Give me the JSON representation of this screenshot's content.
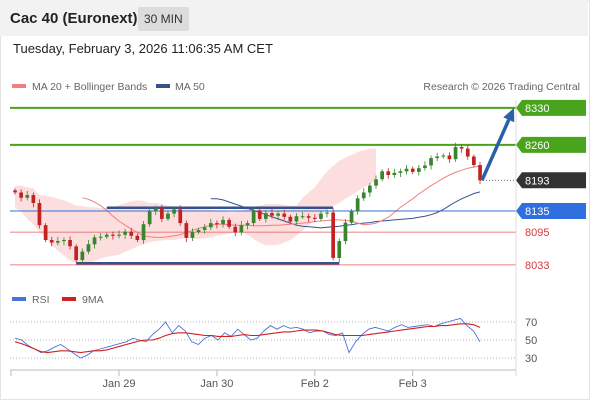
{
  "header": {
    "title": "Cac 40 (Euronext)",
    "timeframe": "30 MIN",
    "timestamp": "Tuesday, February 3, 2026 11:06:35 AM CET"
  },
  "legend": {
    "ma20_label": "MA 20 + Bollinger Bands",
    "ma50_label": "MA 50",
    "credit": "Research © 2026 Trading Central",
    "rsi_label": "RSI",
    "rsi_ma_label": "9MA"
  },
  "colors": {
    "up": "#37862f",
    "down": "#c12323",
    "ma20": "#f08080",
    "ma50": "#37528a",
    "bands_fill": "#fbd3d3",
    "resistance": "#4aa31d",
    "current": "#333333",
    "pivot": "#2f6fe0",
    "support": "#e05c5c",
    "rsi": "#4a73d6",
    "rsi_ma": "#d21f1f",
    "arrow": "#2b5fa8"
  },
  "chart_data": {
    "type": "candlestick",
    "instrument": "Cac 40 (Euronext)",
    "interval": "30 MIN",
    "x_ticks": [
      "Jan 29",
      "Jan 30",
      "Feb 2",
      "Feb 3"
    ],
    "x_tick_index": [
      17,
      33,
      49,
      65
    ],
    "ylim": [
      8010,
      8345
    ],
    "levels": [
      {
        "value": 8330,
        "label": "8330",
        "kind": "resistance"
      },
      {
        "value": 8260,
        "label": "8260",
        "kind": "resistance"
      },
      {
        "value": 8193,
        "label": "8193",
        "kind": "current"
      },
      {
        "value": 8135,
        "label": "8135",
        "kind": "pivot"
      },
      {
        "value": 8095,
        "label": "8095",
        "kind": "support"
      },
      {
        "value": 8033,
        "label": "8033",
        "kind": "support"
      }
    ],
    "arrow": {
      "from_value": 8193,
      "to_value": 8330
    },
    "channel_top": {
      "value": 8141,
      "from_index": 15,
      "to_index": 52
    },
    "channel_bottom": {
      "value": 8036,
      "from_index": 10,
      "to_index": 53
    },
    "close": [
      8170,
      8160,
      8165,
      8150,
      8108,
      8080,
      8075,
      8078,
      8080,
      8068,
      8042,
      8058,
      8072,
      8085,
      8086,
      8090,
      8088,
      8090,
      8096,
      8088,
      8080,
      8110,
      8135,
      8140,
      8120,
      8130,
      8138,
      8112,
      8084,
      8095,
      8099,
      8104,
      8112,
      8110,
      8118,
      8105,
      8094,
      8108,
      8112,
      8136,
      8120,
      8131,
      8126,
      8130,
      8124,
      8115,
      8125,
      8125,
      8122,
      8120,
      8130,
      8132,
      8046,
      8078,
      8113,
      8135,
      8159,
      8170,
      8183,
      8195,
      8210,
      8203,
      8207,
      8210,
      8215,
      8209,
      8216,
      8221,
      8235,
      8238,
      8240,
      8233,
      8256,
      8253,
      8238,
      8222,
      8193
    ],
    "ma20": [
      8160,
      8157,
      8152,
      8145,
      8136,
      8125,
      8116,
      8108,
      8101,
      8094,
      8088,
      8086,
      8085,
      8085,
      8086,
      8088,
      8090,
      8094,
      8098,
      8102,
      8105,
      8108,
      8110,
      8110,
      8109,
      8108,
      8108,
      8108,
      8107,
      8107,
      8107,
      8108,
      8108,
      8109,
      8110,
      8111,
      8112,
      8113,
      8115,
      8116,
      8117,
      8118,
      8118,
      8117,
      8116,
      8112,
      8109,
      8110,
      8112,
      8117,
      8123,
      8132,
      8142,
      8150,
      8158,
      8167,
      8175,
      8183,
      8190,
      8197,
      8203,
      8208,
      8212,
      8216,
      8218,
      8220
    ],
    "upper_band": [
      8183,
      8183,
      8180,
      8178,
      8165,
      8164,
      8162,
      8158,
      8155,
      8150,
      8145,
      8144,
      8142,
      8142,
      8140,
      8141,
      8142,
      8146,
      8150,
      8153,
      8155,
      8154,
      8150,
      8150,
      8148,
      8145,
      8143,
      8141,
      8139,
      8139,
      8138,
      8138,
      8137,
      8136,
      8135,
      8133,
      8133,
      8135,
      8140,
      8143,
      8145,
      8148,
      8148,
      8148,
      8147,
      8145,
      8145,
      8160,
      8170,
      8180,
      8195,
      8210,
      8220,
      8230,
      8236,
      8241,
      8246,
      8250,
      8253,
      8253
    ],
    "lower_band": [
      8140,
      8135,
      8120,
      8110,
      8095,
      8085,
      8070,
      8060,
      8050,
      8042,
      8035,
      8032,
      8035,
      8040,
      8045,
      8048,
      8050,
      8052,
      8058,
      8062,
      8068,
      8072,
      8076,
      8078,
      8079,
      8080,
      8080,
      8082,
      8084,
      8083,
      8082,
      8083,
      8085,
      8088,
      8090,
      8092,
      8095,
      8095,
      8090,
      8082,
      8075,
      8070,
      8070,
      8071,
      8075,
      8080,
      8088,
      8098,
      8108,
      8118,
      8128,
      8138,
      8145,
      8150,
      8158,
      8165,
      8172,
      8180,
      8186,
      8190
    ],
    "ma50": [
      8158,
      8158,
      8156,
      8152,
      8148,
      8144,
      8140,
      8136,
      8132,
      8128,
      8124,
      8120,
      8116,
      8112,
      8108,
      8106,
      8105,
      8104,
      8103,
      8104,
      8105,
      8106,
      8108,
      8109,
      8111,
      8112,
      8113,
      8115,
      8116,
      8117,
      8118,
      8119,
      8120,
      8121,
      8123,
      8125,
      8128,
      8132,
      8138,
      8145,
      8152,
      8158,
      8163,
      8168,
      8171
    ],
    "rsi": {
      "ylim": [
        20,
        80
      ],
      "levels": [
        70,
        50,
        30
      ],
      "values": [
        52,
        50,
        44,
        40,
        36,
        38,
        42,
        45,
        40,
        35,
        30,
        33,
        38,
        40,
        42,
        44,
        46,
        48,
        52,
        50,
        48,
        56,
        62,
        70,
        58,
        66,
        60,
        48,
        45,
        52,
        55,
        50,
        58,
        54,
        62,
        56,
        50,
        52,
        60,
        66,
        62,
        66,
        63,
        64,
        62,
        58,
        60,
        60,
        56,
        55,
        58,
        36,
        48,
        56,
        62,
        64,
        62,
        60,
        64,
        67,
        64,
        65,
        66,
        67,
        65,
        68,
        70,
        72,
        74,
        66,
        60,
        48
      ],
      "ma9": [
        48,
        46,
        43,
        40,
        37,
        36,
        37,
        38,
        38,
        37,
        36,
        37,
        38,
        38,
        39,
        41,
        43,
        45,
        47,
        49,
        50,
        50,
        52,
        55,
        57,
        58,
        58,
        57,
        56,
        55,
        55,
        54,
        54,
        54,
        55,
        56,
        55,
        55,
        56,
        57,
        58,
        59,
        59,
        60,
        61,
        61,
        61,
        60,
        58,
        56,
        55,
        55,
        55,
        55,
        56,
        57,
        58,
        59,
        60,
        61,
        62,
        63,
        64,
        65,
        65,
        66,
        66,
        67,
        68,
        68,
        67,
        64
      ]
    }
  }
}
